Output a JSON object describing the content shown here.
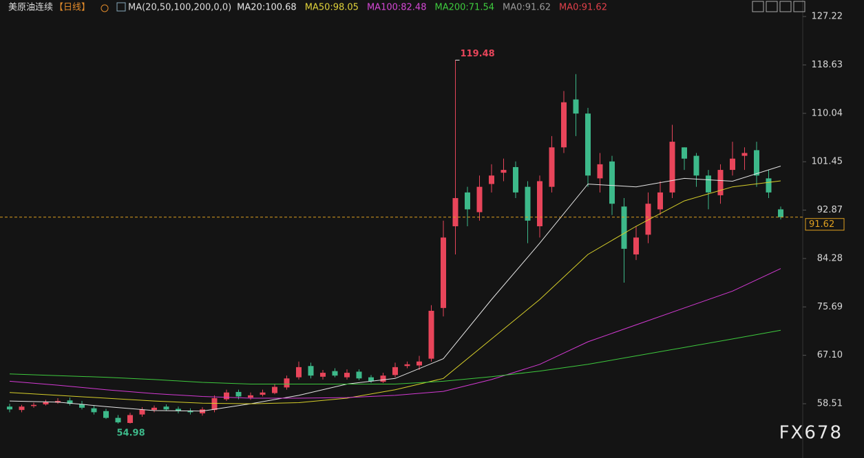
{
  "chart_data": {
    "type": "candlestick",
    "title": "美原油连续",
    "period": "【日线】",
    "indicator": "MA(20,50,100,200,0,0)",
    "legend_items": [
      {
        "text": "MA20:100.68",
        "color": "#e6e6e6"
      },
      {
        "text": "MA50:98.05",
        "color": "#e0d23a"
      },
      {
        "text": "MA100:82.48",
        "color": "#d548d5"
      },
      {
        "text": "MA200:71.54",
        "color": "#3ecb3e"
      },
      {
        "text": "MA0:91.62",
        "color": "#9a9a9a"
      },
      {
        "text": "MA0:91.62",
        "color": "#e0404a"
      }
    ],
    "watermark": "FX678",
    "up_color": "#e8455a",
    "down_color": "#3db98a",
    "open": [
      58,
      57.4,
      58.1,
      58.4,
      58.7,
      59.1,
      58.4,
      57.7,
      57.2,
      56,
      55.1,
      56.6,
      57.4,
      58,
      57.6,
      57.3,
      56.8,
      57.4,
      59.3,
      60.6,
      59.6,
      60.1,
      60.4,
      61.4,
      63.2,
      65.2,
      63.3,
      64.3,
      63.2,
      64.2,
      63.2,
      62.4,
      63.6,
      65.2,
      65.3,
      66.5,
      75.5,
      90,
      96,
      92.5,
      97.5,
      99.5,
      100.5,
      97,
      90,
      97,
      104,
      112.5,
      110,
      98.5,
      101.5,
      93.5,
      85,
      88.5,
      93,
      96,
      104,
      102.5,
      99,
      95.5,
      100,
      102.5,
      103.5,
      98.5,
      93
    ],
    "high": [
      58.5,
      58.3,
      58.7,
      59.2,
      59.5,
      59.6,
      59,
      58.2,
      57.6,
      56.5,
      56.9,
      57.9,
      58.2,
      58.4,
      58,
      57.7,
      57.9,
      60,
      61,
      61,
      60.5,
      61,
      62,
      63.5,
      66,
      65.8,
      64.5,
      64.8,
      64.6,
      64.6,
      63.6,
      64,
      65.8,
      66,
      67,
      76,
      91,
      119.48,
      97,
      99,
      101,
      102,
      101.5,
      98,
      99,
      106,
      114,
      117,
      111,
      103,
      102.5,
      95,
      90,
      96,
      98,
      108,
      104,
      103,
      100,
      101,
      105,
      104,
      105,
      100,
      93.5
    ],
    "low": [
      57,
      57,
      57.8,
      58.2,
      58.5,
      58.2,
      57.5,
      56.6,
      55.8,
      54.98,
      55,
      56.2,
      57,
      57.2,
      56.8,
      56.6,
      56.4,
      57,
      59,
      59.3,
      59.2,
      59.8,
      60.2,
      61,
      62.8,
      63,
      62.8,
      63.2,
      62.8,
      62.7,
      62.2,
      62.2,
      63.2,
      64.8,
      64.5,
      66,
      74,
      85,
      90,
      91,
      96,
      98,
      95,
      87,
      88,
      96,
      103,
      106,
      97,
      96,
      92,
      80,
      84,
      87,
      92,
      95,
      100,
      97,
      93,
      94,
      99,
      100,
      97,
      95,
      91.2
    ],
    "close": [
      57.5,
      58,
      58.3,
      58.8,
      59,
      58.5,
      57.8,
      57,
      56,
      55.2,
      56.5,
      57.5,
      57.8,
      57.5,
      57.2,
      57,
      57.5,
      59.5,
      60.5,
      59.8,
      60,
      60.5,
      61.5,
      63,
      65,
      63.5,
      64,
      63.5,
      64,
      63,
      62.5,
      63.5,
      65,
      65.5,
      66,
      75,
      88,
      95,
      93,
      97,
      99,
      100,
      96,
      91,
      98,
      104,
      112,
      110,
      99,
      101,
      94,
      86,
      88,
      94,
      96,
      105,
      102,
      99,
      96,
      100,
      102,
      103,
      99,
      96,
      91.62
    ],
    "ma_lines": [
      {
        "name": "MA20",
        "color": "#e6e6e6",
        "x": [
          0,
          4,
          8,
          12,
          16,
          20,
          24,
          28,
          32,
          36,
          40,
          44,
          48,
          52,
          56,
          60,
          64
        ],
        "values": [
          59,
          58.8,
          58,
          57.3,
          57.2,
          58.5,
          60,
          62,
          63,
          66.5,
          77,
          87,
          97.5,
          97,
          98.5,
          98,
          100.68
        ]
      },
      {
        "name": "MA50",
        "color": "#d8d02a",
        "x": [
          0,
          4,
          8,
          12,
          16,
          20,
          24,
          28,
          32,
          36,
          40,
          44,
          48,
          52,
          56,
          60,
          64
        ],
        "values": [
          60.5,
          60,
          59.5,
          59,
          58.6,
          58.5,
          58.7,
          59.5,
          61,
          63,
          70,
          77,
          85,
          90,
          94.5,
          97,
          98.05
        ]
      },
      {
        "name": "MA100",
        "color": "#d53ad5",
        "x": [
          0,
          4,
          8,
          12,
          16,
          20,
          24,
          28,
          32,
          36,
          40,
          44,
          48,
          52,
          56,
          60,
          64
        ],
        "values": [
          62.5,
          61.8,
          61,
          60.3,
          59.8,
          59.5,
          59.5,
          59.6,
          60,
          60.7,
          62.8,
          65.5,
          69.5,
          72.5,
          75.5,
          78.5,
          82.48
        ]
      },
      {
        "name": "MA200",
        "color": "#3ecb3e",
        "x": [
          0,
          4,
          8,
          12,
          16,
          20,
          24,
          28,
          32,
          36,
          40,
          44,
          48,
          52,
          56,
          60,
          64
        ],
        "values": [
          63.8,
          63.5,
          63.2,
          62.8,
          62.3,
          62,
          62,
          62,
          62,
          62.5,
          63.3,
          64.3,
          65.5,
          67,
          68.5,
          70,
          71.54
        ]
      }
    ],
    "ylim": [
      50.22,
      130.15
    ],
    "yticks": [
      {
        "value": 58.51,
        "label": "58.51"
      },
      {
        "value": 67.1,
        "label": "67.10"
      },
      {
        "value": 75.69,
        "label": "75.69"
      },
      {
        "value": 84.28,
        "label": "84.28"
      },
      {
        "value": 92.87,
        "label": "92.87"
      },
      {
        "value": 101.45,
        "label": "101.45"
      },
      {
        "value": 110.04,
        "label": "110.04"
      },
      {
        "value": 118.63,
        "label": "118.63"
      },
      {
        "value": 127.22,
        "label": "127.22"
      }
    ],
    "annotate_high_index": 37,
    "annotate_low_index": 9,
    "price_line_color": "#e0a020"
  }
}
